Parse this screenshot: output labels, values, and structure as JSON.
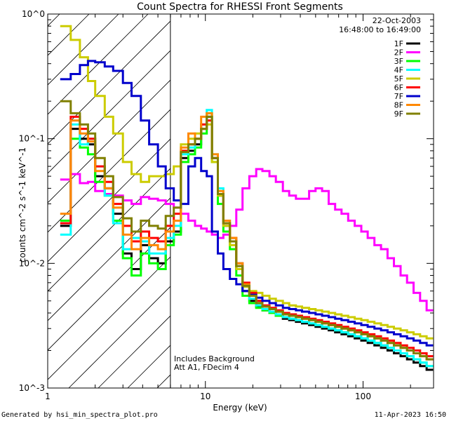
{
  "chart_data": {
    "type": "line",
    "title": "Count Spectra for RHESSI Front Segments",
    "xlabel": "Energy (keV)",
    "ylabel": "counts cm^-2 s^-1 keV^-1",
    "xscale": "log",
    "yscale": "log",
    "xlim": [
      1,
      280
    ],
    "ylim": [
      0.001,
      1
    ],
    "x_tick_labels": [
      "1",
      "10",
      "100"
    ],
    "y_tick_labels": [
      "10^-3",
      "10^-2",
      "10^-1",
      "10^0"
    ],
    "date": "22-Oct-2003",
    "time_range": "16:48:00 to 16:49:00",
    "annotations": [
      "Includes Background",
      "Att A1, FDecim 4"
    ],
    "attenuator_cutoff_kev": 6,
    "footer_left": "Generated by hsi_min_spectra_plot.pro",
    "footer_right": "11-Apr-2023 16:50",
    "x_edges": [
      1.2,
      1.4,
      1.6,
      1.8,
      2.0,
      2.3,
      2.6,
      3.0,
      3.4,
      3.9,
      4.4,
      5.0,
      5.6,
      6.3,
      7.0,
      7.8,
      8.6,
      9.4,
      10.2,
      11.0,
      12.0,
      13.0,
      14.3,
      15.7,
      17.2,
      19.0,
      21.0,
      23.0,
      25.5,
      28.0,
      31.0,
      34.0,
      37.5,
      41.0,
      45.5,
      50.0,
      55.0,
      60.5,
      66.5,
      73.0,
      80.5,
      88.5,
      97.5,
      107.0,
      118.0,
      130.0,
      143.0,
      157.0,
      173.0,
      190.0,
      209.0,
      230.0,
      253.0,
      278.0
    ],
    "series": [
      {
        "name": "1F",
        "color": "#000000",
        "values": [
          0.02,
          0.12,
          0.1,
          0.09,
          0.05,
          0.04,
          0.025,
          0.012,
          0.009,
          0.014,
          0.011,
          0.01,
          0.015,
          0.018,
          0.07,
          0.08,
          0.09,
          0.12,
          0.15,
          0.07,
          0.035,
          0.02,
          0.015,
          0.009,
          0.006,
          0.005,
          0.0045,
          0.0042,
          0.004,
          0.0038,
          0.0036,
          0.0035,
          0.0034,
          0.0033,
          0.0032,
          0.0031,
          0.003,
          0.0029,
          0.0028,
          0.0027,
          0.0026,
          0.0025,
          0.0024,
          0.0023,
          0.0022,
          0.0021,
          0.002,
          0.0019,
          0.0018,
          0.0017,
          0.0016,
          0.0015,
          0.0014
        ]
      },
      {
        "name": "2F",
        "color": "#ff00ff",
        "values": [
          0.047,
          0.052,
          0.044,
          0.045,
          0.038,
          0.036,
          0.035,
          0.032,
          0.03,
          0.034,
          0.033,
          0.032,
          0.03,
          0.028,
          0.025,
          0.022,
          0.02,
          0.019,
          0.018,
          0.017,
          0.016,
          0.017,
          0.02,
          0.027,
          0.04,
          0.05,
          0.057,
          0.055,
          0.05,
          0.045,
          0.038,
          0.035,
          0.033,
          0.033,
          0.038,
          0.04,
          0.038,
          0.03,
          0.027,
          0.025,
          0.022,
          0.02,
          0.018,
          0.016,
          0.014,
          0.013,
          0.011,
          0.0095,
          0.008,
          0.007,
          0.0058,
          0.005,
          0.0042
        ]
      },
      {
        "name": "3F",
        "color": "#00ff00",
        "values": [
          0.022,
          0.1,
          0.085,
          0.075,
          0.045,
          0.035,
          0.022,
          0.011,
          0.008,
          0.012,
          0.01,
          0.009,
          0.014,
          0.017,
          0.065,
          0.075,
          0.085,
          0.11,
          0.16,
          0.065,
          0.03,
          0.018,
          0.013,
          0.008,
          0.0055,
          0.0048,
          0.0044,
          0.0042,
          0.004,
          0.0038,
          0.0037,
          0.0036,
          0.0035,
          0.0034,
          0.0033,
          0.0032,
          0.0031,
          0.003,
          0.0029,
          0.0028,
          0.0027,
          0.0026,
          0.0025,
          0.0024,
          0.0023,
          0.0022,
          0.0021,
          0.002,
          0.0019,
          0.0018,
          0.0017,
          0.0016,
          0.0015
        ]
      },
      {
        "name": "4F",
        "color": "#00ffff",
        "values": [
          0.017,
          0.13,
          0.09,
          0.1,
          0.06,
          0.035,
          0.021,
          0.013,
          0.016,
          0.015,
          0.012,
          0.012,
          0.016,
          0.02,
          0.075,
          0.085,
          0.1,
          0.13,
          0.17,
          0.075,
          0.04,
          0.022,
          0.016,
          0.01,
          0.0065,
          0.0052,
          0.0046,
          0.0043,
          0.0041,
          0.0039,
          0.0037,
          0.0036,
          0.0035,
          0.0034,
          0.0033,
          0.0032,
          0.0031,
          0.003,
          0.0029,
          0.0028,
          0.0027,
          0.0026,
          0.0025,
          0.0024,
          0.0023,
          0.0022,
          0.0021,
          0.002,
          0.0019,
          0.0018,
          0.0017,
          0.0016,
          0.0015
        ]
      },
      {
        "name": "5F",
        "color": "#cccc00",
        "values": [
          0.8,
          0.62,
          0.45,
          0.29,
          0.22,
          0.15,
          0.11,
          0.065,
          0.052,
          0.045,
          0.05,
          0.05,
          0.052,
          0.06,
          0.09,
          0.1,
          0.11,
          0.12,
          0.13,
          0.065,
          0.035,
          0.02,
          0.014,
          0.009,
          0.0065,
          0.006,
          0.0058,
          0.0055,
          0.0052,
          0.005,
          0.0048,
          0.0046,
          0.0045,
          0.0044,
          0.0043,
          0.0042,
          0.0041,
          0.004,
          0.0039,
          0.0038,
          0.0037,
          0.0036,
          0.0035,
          0.0034,
          0.0033,
          0.0032,
          0.0031,
          0.003,
          0.0029,
          0.0028,
          0.0027,
          0.0026,
          0.0025
        ]
      },
      {
        "name": "6F",
        "color": "#ff0000",
        "values": [
          0.021,
          0.15,
          0.12,
          0.1,
          0.06,
          0.045,
          0.03,
          0.02,
          0.015,
          0.018,
          0.016,
          0.015,
          0.02,
          0.025,
          0.08,
          0.09,
          0.1,
          0.13,
          0.14,
          0.07,
          0.036,
          0.021,
          0.016,
          0.01,
          0.007,
          0.0058,
          0.005,
          0.0046,
          0.0044,
          0.0042,
          0.004,
          0.0039,
          0.0038,
          0.0037,
          0.0036,
          0.0035,
          0.0034,
          0.0033,
          0.0032,
          0.0031,
          0.003,
          0.0029,
          0.0028,
          0.0027,
          0.0026,
          0.0025,
          0.0024,
          0.0023,
          0.0022,
          0.0021,
          0.002,
          0.0019,
          0.0018
        ]
      },
      {
        "name": "7F",
        "color": "#0000cc",
        "values": [
          0.3,
          0.33,
          0.39,
          0.42,
          0.41,
          0.38,
          0.35,
          0.28,
          0.22,
          0.14,
          0.09,
          0.06,
          0.04,
          0.032,
          0.03,
          0.06,
          0.07,
          0.055,
          0.05,
          0.018,
          0.012,
          0.009,
          0.0075,
          0.0068,
          0.006,
          0.0056,
          0.0053,
          0.005,
          0.0048,
          0.0046,
          0.0044,
          0.0043,
          0.0042,
          0.0041,
          0.004,
          0.0039,
          0.0038,
          0.0037,
          0.0036,
          0.0035,
          0.0034,
          0.0033,
          0.0032,
          0.0031,
          0.003,
          0.0029,
          0.0028,
          0.0027,
          0.0026,
          0.0025,
          0.0024,
          0.0023,
          0.0022
        ]
      },
      {
        "name": "8F",
        "color": "#ff8800",
        "values": [
          0.025,
          0.14,
          0.11,
          0.095,
          0.055,
          0.04,
          0.028,
          0.017,
          0.013,
          0.016,
          0.014,
          0.013,
          0.018,
          0.022,
          0.085,
          0.11,
          0.1,
          0.15,
          0.16,
          0.075,
          0.038,
          0.022,
          0.016,
          0.01,
          0.0068,
          0.0055,
          0.0048,
          0.0045,
          0.0043,
          0.0041,
          0.0039,
          0.0038,
          0.0037,
          0.0036,
          0.0035,
          0.0034,
          0.0033,
          0.0032,
          0.0031,
          0.003,
          0.0029,
          0.0028,
          0.0027,
          0.0026,
          0.0025,
          0.0024,
          0.0023,
          0.0022,
          0.0021,
          0.002,
          0.0019,
          0.0018,
          0.0017
        ]
      },
      {
        "name": "9F",
        "color": "#808000",
        "values": [
          0.2,
          0.16,
          0.13,
          0.11,
          0.07,
          0.05,
          0.034,
          0.023,
          0.018,
          0.022,
          0.02,
          0.019,
          0.024,
          0.028,
          0.078,
          0.09,
          0.1,
          0.12,
          0.15,
          0.07,
          0.036,
          0.021,
          0.015,
          0.0095,
          0.0066,
          0.0055,
          0.0048,
          0.0045,
          0.0043,
          0.0041,
          0.0039,
          0.0038,
          0.0037,
          0.0036,
          0.0035,
          0.0034,
          0.0033,
          0.0032,
          0.0031,
          0.003,
          0.0029,
          0.0028,
          0.0027,
          0.0026,
          0.0025,
          0.0024,
          0.0023,
          0.0022,
          0.0021,
          0.002,
          0.0019,
          0.0018,
          0.0017
        ]
      }
    ]
  }
}
